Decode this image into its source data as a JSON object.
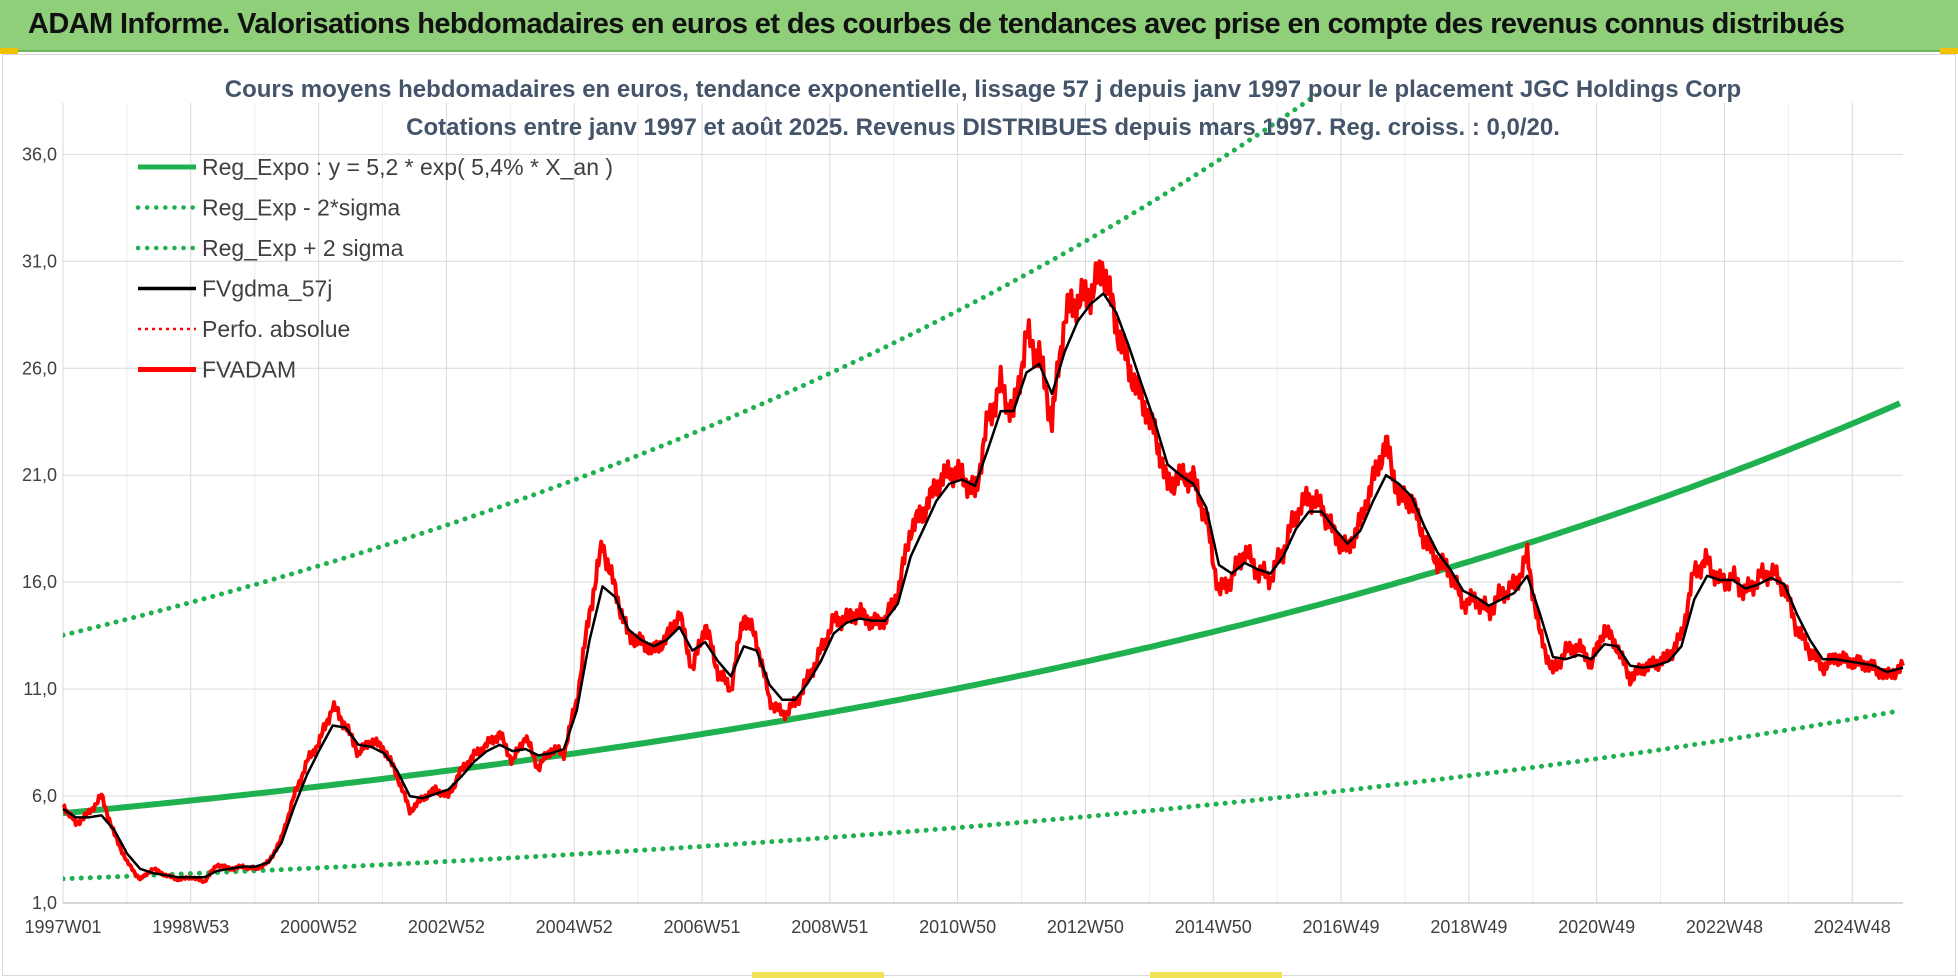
{
  "header": {
    "title": "ADAM Informe. Valorisations hebdomadaires en euros et des courbes de tendances avec prise en compte des revenus connus distribués"
  },
  "colors": {
    "header_bg": "#8fcf7a",
    "trend": "#1fb150",
    "band": "#1fb150",
    "fvgdma": "#000000",
    "fvadam": "#ff0000",
    "perfo": "#ff0000",
    "grid": "#d9d9d9"
  },
  "chart_data": {
    "type": "line",
    "title_lines": [
      "Cours moyens hebdomadaires en euros, tendance exponentielle, lissage 57 j depuis janv 1997 pour le placement JGC Holdings Corp",
      "Cotations entre janv 1997 et août 2025. Revenus DISTRIBUES depuis mars 1997. Reg. croiss. : 0,0/20."
    ],
    "x_tick_labels": [
      "1997W01",
      "1998W53",
      "2000W52",
      "2002W52",
      "2004W52",
      "2006W51",
      "2008W51",
      "2010W50",
      "2012W50",
      "2014W50",
      "2016W49",
      "2018W49",
      "2020W49",
      "2022W48",
      "2024W48"
    ],
    "x_range_years": [
      1997.0,
      2025.65
    ],
    "y_ticks": [
      "1,0",
      "6,0",
      "11,0",
      "16,0",
      "21,0",
      "26,0",
      "31,0",
      "36,0"
    ],
    "ylim": [
      1,
      37
    ],
    "grid": true,
    "legend_position": "top-left",
    "legend": [
      {
        "name": "Reg_Expo : y = 5,2 * exp( 5,4% *  X_an )",
        "style": "solid-thick",
        "color": "#1fb150"
      },
      {
        "name": "Reg_Exp - 2*sigma",
        "style": "dotted",
        "color": "#1fb150"
      },
      {
        "name": "Reg_Exp + 2 sigma",
        "style": "dotted",
        "color": "#1fb150"
      },
      {
        "name": "FVgdma_57j",
        "style": "solid",
        "color": "#000000"
      },
      {
        "name": "Perfo. absolue",
        "style": "dotted-thin",
        "color": "#ff0000"
      },
      {
        "name": "FVADAM",
        "style": "solid-thick",
        "color": "#ff0000"
      }
    ],
    "regression": {
      "a": 5.2,
      "rate": 0.054,
      "x0": 1997.0
    },
    "band_multiplier_low": 0.41,
    "band_multiplier_high": 2.6,
    "fvadam": {
      "x": [
        1997.0,
        1997.2,
        1997.4,
        1997.6,
        1997.8,
        1998.0,
        1998.2,
        1998.4,
        1998.6,
        1998.8,
        1999.0,
        1999.2,
        1999.4,
        1999.6,
        1999.8,
        2000.0,
        2000.2,
        2000.4,
        2000.6,
        2000.8,
        2001.0,
        2001.2,
        2001.4,
        2001.6,
        2001.8,
        2002.0,
        2002.2,
        2002.4,
        2002.6,
        2002.8,
        2003.0,
        2003.2,
        2003.4,
        2003.6,
        2003.8,
        2004.0,
        2004.2,
        2004.4,
        2004.6,
        2004.8,
        2005.0,
        2005.2,
        2005.4,
        2005.6,
        2005.8,
        2006.0,
        2006.2,
        2006.4,
        2006.6,
        2006.8,
        2007.0,
        2007.2,
        2007.4,
        2007.6,
        2007.8,
        2008.0,
        2008.2,
        2008.4,
        2008.6,
        2008.8,
        2009.0,
        2009.2,
        2009.4,
        2009.6,
        2009.8,
        2010.0,
        2010.2,
        2010.4,
        2010.6,
        2010.8,
        2011.0,
        2011.2,
        2011.4,
        2011.6,
        2011.8,
        2012.0,
        2012.2,
        2012.4,
        2012.6,
        2012.8,
        2013.0,
        2013.2,
        2013.4,
        2013.6,
        2013.8,
        2014.0,
        2014.2,
        2014.4,
        2014.6,
        2014.8,
        2015.0,
        2015.2,
        2015.4,
        2015.6,
        2015.8,
        2016.0,
        2016.2,
        2016.4,
        2016.6,
        2016.8,
        2017.0,
        2017.2,
        2017.4,
        2017.6,
        2017.8,
        2018.0,
        2018.2,
        2018.4,
        2018.6,
        2018.8,
        2019.0,
        2019.2,
        2019.4,
        2019.6,
        2019.8,
        2020.0,
        2020.2,
        2020.4,
        2020.6,
        2020.8,
        2021.0,
        2021.2,
        2021.4,
        2021.6,
        2021.8,
        2022.0,
        2022.2,
        2022.4,
        2022.6,
        2022.8,
        2023.0,
        2023.2,
        2023.4,
        2023.6,
        2023.8,
        2024.0,
        2024.2,
        2024.4,
        2024.6,
        2024.8,
        2025.0,
        2025.2,
        2025.4,
        2025.65
      ],
      "y": [
        5.6,
        4.7,
        5.2,
        6.0,
        4.2,
        2.9,
        2.1,
        2.6,
        2.3,
        2.1,
        2.2,
        2.0,
        2.8,
        2.6,
        2.7,
        2.6,
        2.9,
        4.0,
        6.0,
        7.6,
        8.6,
        10.2,
        9.3,
        8.0,
        8.6,
        8.2,
        7.0,
        5.3,
        5.9,
        6.3,
        6.0,
        7.2,
        7.9,
        8.4,
        8.9,
        7.6,
        8.8,
        7.3,
        8.2,
        8.0,
        10.5,
        14.6,
        17.8,
        15.6,
        13.5,
        13.2,
        12.8,
        13.4,
        14.5,
        11.9,
        14.0,
        11.8,
        11.0,
        14.5,
        13.3,
        10.5,
        9.8,
        10.3,
        11.5,
        12.8,
        14.2,
        14.3,
        14.6,
        14.1,
        14.2,
        15.5,
        18.5,
        19.3,
        20.5,
        21.2,
        21.0,
        20.1,
        23.5,
        25.2,
        23.8,
        27.5,
        26.6,
        23.5,
        28.5,
        29.2,
        29.5,
        30.8,
        28.0,
        26.0,
        24.5,
        23.0,
        20.5,
        21.0,
        20.8,
        19.0,
        15.5,
        16.2,
        17.5,
        16.5,
        16.2,
        17.5,
        19.2,
        20.0,
        19.5,
        18.2,
        17.5,
        18.8,
        20.8,
        22.5,
        20.0,
        19.8,
        18.0,
        17.0,
        16.5,
        15.0,
        15.2,
        14.6,
        15.5,
        15.8,
        17.2,
        13.5,
        11.8,
        12.8,
        13.0,
        12.2,
        13.8,
        13.0,
        11.5,
        12.0,
        12.2,
        12.5,
        13.5,
        16.5,
        17.0,
        16.0,
        16.2,
        15.5,
        16.2,
        16.5,
        15.8,
        13.8,
        12.8,
        12.0,
        12.5,
        12.3,
        12.2,
        12.0,
        11.6,
        12.1
      ]
    },
    "fvgdma_57j": {
      "x": [
        1997.0,
        1997.2,
        1997.4,
        1997.6,
        1997.8,
        1998.0,
        1998.2,
        1998.4,
        1998.6,
        1998.8,
        1999.0,
        1999.2,
        1999.4,
        1999.6,
        1999.8,
        2000.0,
        2000.2,
        2000.4,
        2000.6,
        2000.8,
        2001.0,
        2001.2,
        2001.4,
        2001.6,
        2001.8,
        2002.0,
        2002.2,
        2002.4,
        2002.6,
        2002.8,
        2003.0,
        2003.2,
        2003.4,
        2003.6,
        2003.8,
        2004.0,
        2004.2,
        2004.4,
        2004.6,
        2004.8,
        2005.0,
        2005.2,
        2005.4,
        2005.6,
        2005.8,
        2006.0,
        2006.2,
        2006.4,
        2006.6,
        2006.8,
        2007.0,
        2007.2,
        2007.4,
        2007.6,
        2007.8,
        2008.0,
        2008.2,
        2008.4,
        2008.6,
        2008.8,
        2009.0,
        2009.2,
        2009.4,
        2009.6,
        2009.8,
        2010.0,
        2010.2,
        2010.4,
        2010.6,
        2010.8,
        2011.0,
        2011.2,
        2011.4,
        2011.6,
        2011.8,
        2012.0,
        2012.2,
        2012.4,
        2012.6,
        2012.8,
        2013.0,
        2013.2,
        2013.4,
        2013.6,
        2013.8,
        2014.0,
        2014.2,
        2014.4,
        2014.6,
        2014.8,
        2015.0,
        2015.2,
        2015.4,
        2015.6,
        2015.8,
        2016.0,
        2016.2,
        2016.4,
        2016.6,
        2016.8,
        2017.0,
        2017.2,
        2017.4,
        2017.6,
        2017.8,
        2018.0,
        2018.2,
        2018.4,
        2018.6,
        2018.8,
        2019.0,
        2019.2,
        2019.4,
        2019.6,
        2019.8,
        2020.0,
        2020.2,
        2020.4,
        2020.6,
        2020.8,
        2021.0,
        2021.2,
        2021.4,
        2021.6,
        2021.8,
        2022.0,
        2022.2,
        2022.4,
        2022.6,
        2022.8,
        2023.0,
        2023.2,
        2023.4,
        2023.6,
        2023.8,
        2024.0,
        2024.2,
        2024.4,
        2024.6,
        2024.8,
        2025.0,
        2025.2,
        2025.4,
        2025.65
      ],
      "y": [
        5.4,
        5.0,
        5.0,
        5.1,
        4.4,
        3.3,
        2.6,
        2.4,
        2.3,
        2.2,
        2.2,
        2.2,
        2.5,
        2.6,
        2.7,
        2.7,
        2.9,
        3.8,
        5.5,
        7.0,
        8.2,
        9.3,
        9.2,
        8.4,
        8.3,
        8.0,
        7.2,
        6.0,
        5.9,
        6.1,
        6.3,
        6.9,
        7.6,
        8.1,
        8.4,
        8.1,
        8.2,
        7.9,
        8.0,
        8.2,
        10.0,
        13.3,
        15.8,
        15.3,
        13.8,
        13.3,
        13.0,
        13.3,
        13.9,
        12.8,
        13.2,
        12.3,
        11.6,
        13.0,
        12.8,
        11.2,
        10.5,
        10.5,
        11.3,
        12.3,
        13.6,
        14.1,
        14.3,
        14.2,
        14.2,
        15.0,
        17.2,
        18.5,
        19.8,
        20.6,
        20.8,
        20.5,
        22.2,
        24.0,
        24.0,
        25.8,
        26.2,
        24.8,
        26.8,
        28.2,
        29.0,
        29.5,
        28.6,
        27.0,
        25.2,
        23.5,
        21.5,
        21.0,
        20.6,
        19.5,
        16.8,
        16.4,
        16.9,
        16.6,
        16.4,
        17.2,
        18.5,
        19.3,
        19.3,
        18.5,
        17.8,
        18.4,
        19.8,
        21.0,
        20.6,
        20.0,
        18.6,
        17.4,
        16.6,
        15.6,
        15.3,
        14.9,
        15.2,
        15.5,
        16.3,
        14.5,
        12.5,
        12.4,
        12.6,
        12.4,
        13.1,
        13.0,
        12.1,
        12.0,
        12.1,
        12.3,
        13.0,
        15.2,
        16.3,
        16.1,
        16.1,
        15.7,
        15.9,
        16.2,
        15.9,
        14.5,
        13.3,
        12.4,
        12.4,
        12.3,
        12.2,
        12.1,
        11.8,
        12.0
      ]
    }
  }
}
